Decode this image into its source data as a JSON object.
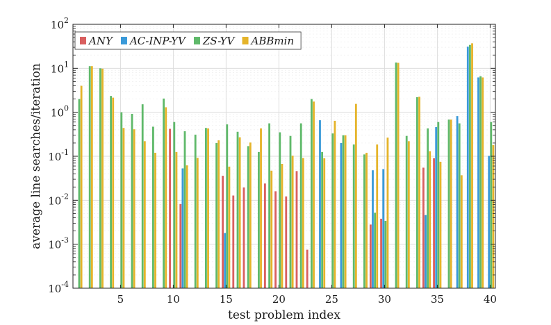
{
  "chart_data": {
    "type": "bar",
    "xlabel": "test problem index",
    "ylabel": "average line searches/iteration",
    "yscale": "log",
    "ylim": [
      0.0001,
      100
    ],
    "xlim": [
      0.5,
      40.5
    ],
    "grid": true,
    "legend_position": "top-left",
    "x": [
      1,
      2,
      3,
      4,
      5,
      6,
      7,
      8,
      9,
      10,
      11,
      12,
      13,
      14,
      15,
      16,
      17,
      18,
      19,
      20,
      21,
      22,
      23,
      24,
      25,
      26,
      27,
      28,
      29,
      30,
      31,
      32,
      33,
      34,
      35,
      36,
      37,
      38,
      39,
      40
    ],
    "xticks": [
      5,
      10,
      15,
      20,
      25,
      30,
      35,
      40
    ],
    "xtick_labels": [
      "5",
      "10",
      "15",
      "20",
      "25",
      "30",
      "35",
      "40"
    ],
    "yticks": [
      {
        "base": "10",
        "exp": "-4"
      },
      {
        "base": "10",
        "exp": "-3"
      },
      {
        "base": "10",
        "exp": "-2"
      },
      {
        "base": "10",
        "exp": "-1"
      },
      {
        "base": "10",
        "exp": "0"
      },
      {
        "base": "10",
        "exp": "1"
      },
      {
        "base": "10",
        "exp": "2"
      }
    ],
    "series": [
      {
        "name": "ANY",
        "color": "#d95f5f",
        "values": [
          null,
          null,
          null,
          null,
          null,
          null,
          null,
          null,
          null,
          0.42,
          0.0082,
          null,
          null,
          null,
          0.036,
          0.0128,
          0.0195,
          null,
          0.024,
          0.016,
          0.0122,
          0.046,
          0.00075,
          null,
          null,
          null,
          null,
          null,
          0.0028,
          0.0038,
          null,
          null,
          null,
          0.055,
          0.09,
          null,
          null,
          null,
          null,
          null
        ]
      },
      {
        "name": "AC-INP-YV",
        "color": "#3a9ad9",
        "values": [
          null,
          null,
          null,
          null,
          null,
          null,
          null,
          null,
          null,
          null,
          0.053,
          null,
          null,
          null,
          0.0018,
          null,
          null,
          null,
          null,
          null,
          null,
          null,
          null,
          0.66,
          null,
          0.2,
          null,
          null,
          0.048,
          0.051,
          null,
          null,
          null,
          0.0046,
          0.46,
          null,
          0.82,
          31,
          6.2,
          0.102
        ]
      },
      {
        "name": "ZS-YV",
        "color": "#5fb96a",
        "values": [
          2.0,
          11.2,
          10.0,
          2.35,
          1.0,
          0.92,
          1.52,
          0.47,
          2.05,
          0.6,
          0.37,
          0.31,
          0.44,
          0.2,
          0.53,
          0.36,
          0.17,
          0.125,
          0.56,
          0.35,
          0.29,
          0.56,
          2.0,
          0.125,
          0.33,
          0.3,
          0.185,
          0.11,
          0.0052,
          0.0034,
          13.5,
          0.29,
          2.2,
          0.43,
          0.6,
          0.68,
          0.56,
          34,
          6.6,
          0.6
        ]
      },
      {
        "name": "ABBmin",
        "color": "#e5b42a",
        "values": [
          4.0,
          11.2,
          9.8,
          2.15,
          0.44,
          0.41,
          0.22,
          0.12,
          1.3,
          0.125,
          0.062,
          0.092,
          0.43,
          0.23,
          0.058,
          0.27,
          0.205,
          0.43,
          0.047,
          0.067,
          0.103,
          0.091,
          1.75,
          0.09,
          0.64,
          0.3,
          1.55,
          0.12,
          0.185,
          0.265,
          13.3,
          0.22,
          2.25,
          0.13,
          0.075,
          0.68,
          0.037,
          37,
          6.2,
          0.18
        ]
      }
    ]
  }
}
